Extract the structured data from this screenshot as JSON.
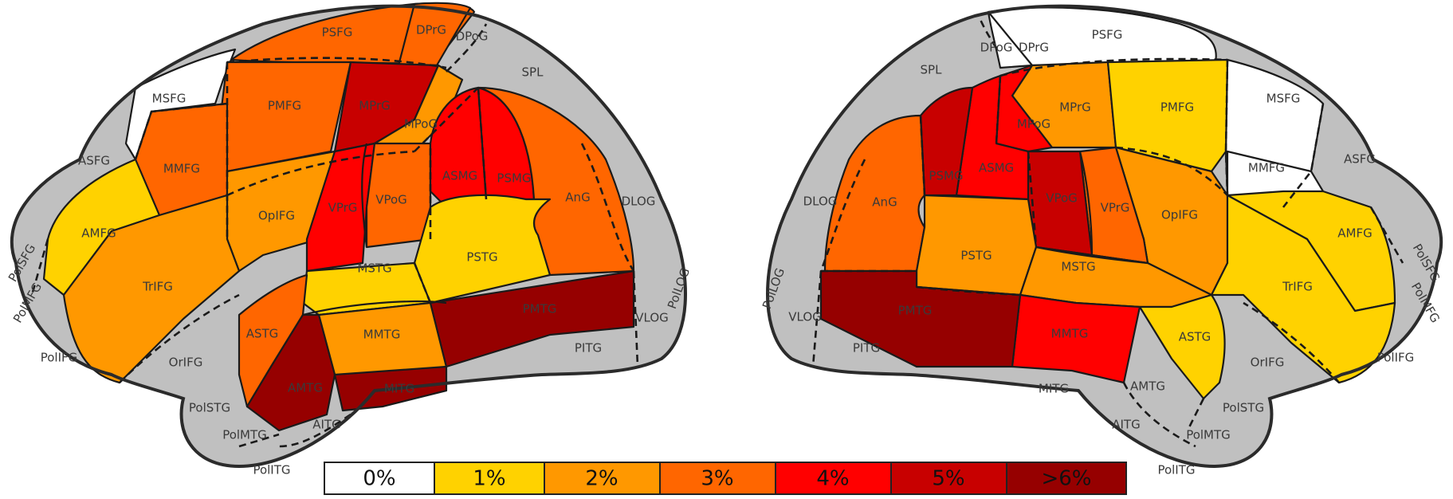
{
  "colors": {
    "grey": "#c0c0c0",
    "p0": "#ffffff",
    "p1": "#ffd200",
    "p2": "#ff9800",
    "p3": "#ff6600",
    "p4": "#ff0000",
    "p5": "#c80000",
    "p6": "#960000"
  },
  "legend": [
    {
      "label": "0%",
      "color": "#ffffff"
    },
    {
      "label": "1%",
      "color": "#ffd200"
    },
    {
      "label": "2%",
      "color": "#ff9800"
    },
    {
      "label": "3%",
      "color": "#ff6600"
    },
    {
      "label": "4%",
      "color": "#ff0000"
    },
    {
      "label": "5%",
      "color": "#c80000"
    },
    {
      "label": ">6%",
      "color": "#960000"
    }
  ],
  "left": {
    "PSFG": "PSFG",
    "DPrG": "DPrG",
    "DPoG": "DPoG",
    "SPL": "SPL",
    "MSFG": "MSFG",
    "PMFG": "PMFG",
    "MPrG": "MPrG",
    "MPoG": "MPoG",
    "ASFG": "ASFG",
    "MMFG": "MMFG",
    "ASMG": "ASMG",
    "PSMG": "PSMG",
    "AnG": "AnG",
    "DLOG": "DLOG",
    "AMFG": "AMFG",
    "OpIFG": "OpIFG",
    "VPrG": "VPrG",
    "VPoG": "VPoG",
    "PolSFG": "PolSFG",
    "PolMFG": "PolMFG",
    "TrIFG": "TrIFG",
    "MSTG": "MSTG",
    "PSTG": "PSTG",
    "PolLOG": "PolLOG",
    "PMTG": "PMTG",
    "VLOG": "VLOG",
    "PolIFG": "PolIFG",
    "OrIFG": "OrIFG",
    "ASTG": "ASTG",
    "MMTG": "MMTG",
    "PITG": "PITG",
    "AMTG": "AMTG",
    "MITG": "MITG",
    "PolSTG": "PolSTG",
    "PolMTG": "PolMTG",
    "AITG": "AITG",
    "PolITG": "PolITG"
  },
  "right": {
    "PSFG": "PSFG",
    "DPrG": "DPrG",
    "DPoG": "DPoG",
    "SPL": "SPL",
    "MSFG": "MSFG",
    "PMFG": "PMFG",
    "MPrG": "MPrG",
    "MPoG": "MPoG",
    "ASFG": "ASFG",
    "MMFG": "MMFG",
    "ASMG": "ASMG",
    "PSMG": "PSMG",
    "AnG": "AnG",
    "DLOG": "DLOG",
    "AMFG": "AMFG",
    "OpIFG": "OpIFG",
    "VPrG": "VPrG",
    "VPoG": "VPoG",
    "PolSFG": "PolSFG",
    "PolMFG": "PolMFG",
    "TrIFG": "TrIFG",
    "MSTG": "MSTG",
    "PSTG": "PSTG",
    "PolLOG": "PolLOG",
    "PMTG": "PMTG",
    "VLOG": "VLOG",
    "PolIFG": "PolIFG",
    "OrIFG": "OrIFG",
    "ASTG": "ASTG",
    "MMTG": "MMTG",
    "PITG": "PITG",
    "AMTG": "AMTG",
    "MITG": "MITG",
    "PolSTG": "PolSTG",
    "PolMTG": "PolMTG",
    "AITG": "AITG",
    "PolITG": "PolITG"
  }
}
